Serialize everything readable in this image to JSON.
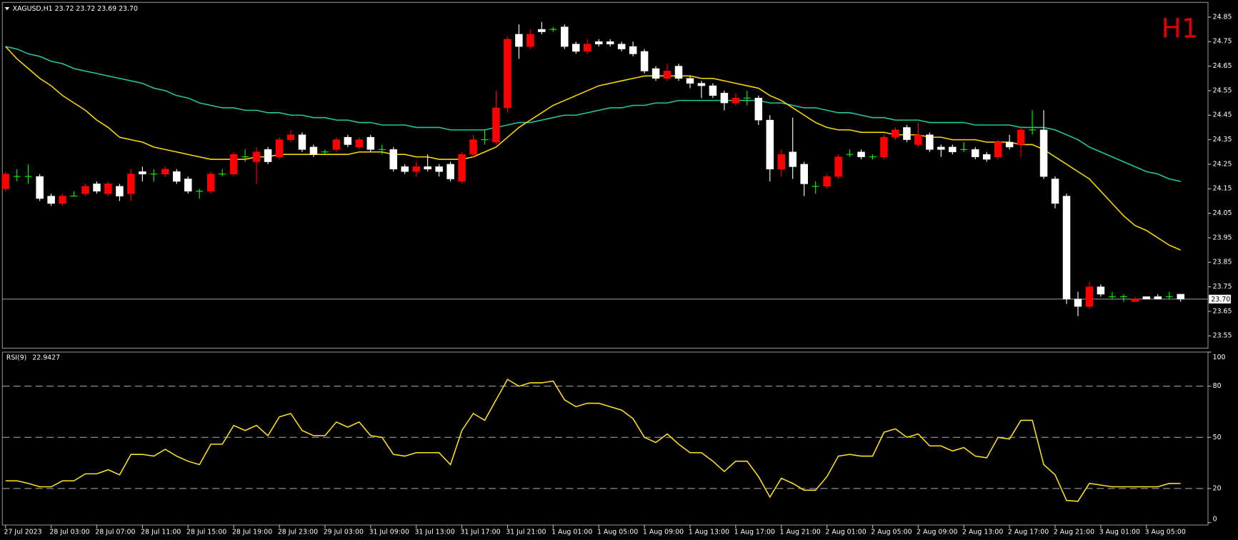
{
  "chart_data": [
    {
      "type": "candlestick",
      "title": "XAGUSD,H1  23.72 23.72 23.69 23.70",
      "timeframe": "H1",
      "categories": [
        "27 Jul 2023",
        null,
        null,
        null,
        "28 Jul 03:00",
        null,
        null,
        null,
        "28 Jul 07:00",
        null,
        null,
        null,
        "28 Jul 11:00",
        null,
        null,
        null,
        "28 Jul 15:00",
        null,
        null,
        null,
        "28 Jul 19:00",
        null,
        null,
        null,
        "28 Jul 23:00",
        null,
        null,
        null,
        "29 Jul 03:00",
        null,
        null,
        null,
        "31 Jul 09:00",
        null,
        null,
        null,
        "31 Jul 13:00",
        null,
        null,
        null,
        "31 Jul 17:00",
        null,
        null,
        null,
        "31 Jul 21:00",
        null,
        null,
        null,
        "1 Aug 01:00",
        null,
        null,
        null,
        "1 Aug 05:00",
        null,
        null,
        null,
        "1 Aug 09:00",
        null,
        null,
        null,
        "1 Aug 13:00",
        null,
        null,
        null,
        "1 Aug 17:00",
        null,
        null,
        null,
        "1 Aug 21:00",
        null,
        null,
        null,
        "2 Aug 01:00",
        null,
        null,
        null,
        "2 Aug 05:00",
        null,
        null,
        null,
        "2 Aug 09:00",
        null,
        null,
        null,
        "2 Aug 13:00",
        null,
        null,
        null,
        "2 Aug 17:00",
        null,
        null,
        null,
        "2 Aug 21:00",
        null,
        null,
        null,
        "3 Aug 01:00",
        null,
        null,
        null,
        "3 Aug 05:00",
        null,
        null,
        null
      ],
      "open": [
        24.15,
        24.2,
        24.2,
        24.2,
        24.12,
        24.09,
        24.12,
        24.13,
        24.17,
        24.13,
        24.16,
        24.13,
        24.22,
        24.21,
        24.21,
        24.22,
        24.19,
        24.14,
        24.14,
        24.21,
        24.21,
        24.28,
        24.26,
        24.31,
        24.28,
        24.35,
        24.37,
        24.32,
        24.3,
        24.31,
        24.36,
        24.32,
        24.36,
        24.31,
        24.31,
        24.24,
        24.22,
        24.24,
        24.24,
        24.25,
        24.18,
        24.29,
        24.35,
        24.34,
        24.48,
        24.78,
        24.73,
        24.8,
        24.8,
        24.81,
        24.74,
        24.71,
        24.75,
        24.75,
        24.74,
        24.73,
        24.71,
        24.64,
        24.6,
        24.65,
        24.6,
        24.58,
        24.57,
        24.54,
        24.5,
        24.52,
        24.52,
        24.43,
        24.23,
        24.3,
        24.25,
        24.16,
        24.16,
        24.2,
        24.29,
        24.3,
        24.28,
        24.28,
        24.36,
        24.4,
        24.33,
        24.37,
        24.32,
        24.32,
        24.31,
        24.31,
        24.29,
        24.28,
        24.34,
        24.33,
        24.39,
        24.39,
        24.19,
        24.12,
        23.7,
        23.67,
        23.75,
        23.71,
        23.71,
        23.69,
        23.71,
        23.71,
        23.71,
        23.72
      ],
      "high": [
        24.22,
        24.23,
        24.25,
        24.21,
        24.13,
        24.13,
        24.14,
        24.17,
        24.18,
        24.18,
        24.17,
        24.23,
        24.24,
        24.23,
        24.24,
        24.23,
        24.2,
        24.15,
        24.22,
        24.23,
        24.3,
        24.31,
        24.32,
        24.32,
        24.36,
        24.39,
        24.38,
        24.33,
        24.31,
        24.36,
        24.37,
        24.36,
        24.37,
        24.33,
        24.32,
        24.25,
        24.26,
        24.29,
        24.25,
        24.26,
        24.3,
        24.37,
        24.39,
        24.55,
        24.77,
        24.82,
        24.8,
        24.83,
        24.81,
        24.82,
        24.75,
        24.76,
        24.76,
        24.76,
        24.75,
        24.75,
        24.72,
        24.65,
        24.66,
        24.66,
        24.61,
        24.59,
        24.58,
        24.55,
        24.54,
        24.55,
        24.53,
        24.45,
        24.31,
        24.44,
        24.26,
        24.18,
        24.21,
        24.29,
        24.31,
        24.31,
        24.29,
        24.37,
        24.4,
        24.41,
        24.42,
        24.38,
        24.33,
        24.33,
        24.34,
        24.32,
        24.3,
        24.35,
        24.37,
        24.4,
        24.47,
        24.47,
        24.2,
        24.13,
        23.73,
        23.77,
        23.76,
        23.73,
        23.72,
        23.71,
        23.71,
        23.72,
        23.73,
        23.72
      ],
      "low": [
        24.14,
        24.18,
        24.17,
        24.1,
        24.08,
        24.08,
        24.12,
        24.12,
        24.13,
        24.12,
        24.1,
        24.1,
        24.18,
        24.18,
        24.2,
        24.17,
        24.13,
        24.11,
        24.13,
        24.2,
        24.2,
        24.26,
        24.17,
        24.25,
        24.27,
        24.34,
        24.3,
        24.28,
        24.29,
        24.3,
        24.32,
        24.31,
        24.3,
        24.29,
        24.22,
        24.21,
        24.2,
        24.22,
        24.2,
        24.18,
        24.17,
        24.28,
        24.33,
        24.33,
        24.46,
        24.68,
        24.72,
        24.78,
        24.79,
        24.72,
        24.7,
        24.7,
        24.73,
        24.73,
        24.71,
        24.69,
        24.62,
        24.59,
        24.59,
        24.59,
        24.56,
        24.52,
        24.52,
        24.47,
        24.49,
        24.49,
        24.41,
        24.18,
        24.2,
        24.19,
        24.12,
        24.13,
        24.15,
        24.19,
        24.28,
        24.27,
        24.27,
        24.27,
        24.35,
        24.34,
        24.32,
        24.3,
        24.28,
        24.29,
        24.3,
        24.27,
        24.26,
        24.27,
        24.31,
        24.28,
        24.37,
        24.19,
        24.07,
        23.68,
        23.63,
        23.66,
        23.71,
        23.7,
        23.69,
        23.69,
        23.7,
        23.7,
        23.7,
        23.69
      ],
      "close": [
        24.21,
        24.2,
        24.2,
        24.11,
        24.09,
        24.12,
        24.12,
        24.16,
        24.14,
        24.17,
        24.12,
        24.21,
        24.21,
        24.21,
        24.23,
        24.18,
        24.14,
        24.14,
        24.21,
        24.21,
        24.29,
        24.28,
        24.3,
        24.26,
        24.35,
        24.37,
        24.31,
        24.29,
        24.3,
        24.35,
        24.33,
        24.35,
        24.31,
        24.31,
        24.23,
        24.22,
        24.24,
        24.23,
        24.22,
        24.19,
        24.29,
        24.35,
        24.35,
        24.48,
        24.76,
        24.73,
        24.78,
        24.79,
        24.8,
        24.73,
        24.71,
        24.74,
        24.74,
        24.74,
        24.72,
        24.7,
        24.63,
        24.6,
        24.63,
        24.6,
        24.58,
        24.57,
        24.53,
        24.5,
        24.52,
        24.52,
        24.43,
        24.23,
        24.29,
        24.24,
        24.17,
        24.16,
        24.2,
        24.28,
        24.29,
        24.28,
        24.28,
        24.36,
        24.39,
        24.35,
        24.37,
        24.31,
        24.31,
        24.3,
        24.31,
        24.28,
        24.27,
        24.34,
        24.32,
        24.39,
        24.39,
        24.2,
        24.09,
        23.7,
        23.67,
        23.75,
        23.72,
        23.71,
        23.71,
        23.7,
        23.7,
        23.7,
        23.71,
        23.7
      ],
      "up_color": "#ff0000",
      "down_color": "#ffffff",
      "doji_color": "#00ff00",
      "series": [
        {
          "color": "#22c79e",
          "values": [
            24.73,
            24.72,
            24.7,
            24.69,
            24.67,
            24.66,
            24.64,
            24.63,
            24.62,
            24.61,
            24.6,
            24.59,
            24.58,
            24.56,
            24.55,
            24.53,
            24.52,
            24.5,
            24.49,
            24.48,
            24.48,
            24.47,
            24.47,
            24.46,
            24.46,
            24.45,
            24.45,
            24.44,
            24.44,
            24.43,
            24.43,
            24.42,
            24.42,
            24.41,
            24.41,
            24.41,
            24.4,
            24.4,
            24.4,
            24.39,
            24.39,
            24.39,
            24.39,
            24.4,
            24.41,
            24.42,
            24.42,
            24.43,
            24.44,
            24.45,
            24.45,
            24.46,
            24.47,
            24.48,
            24.48,
            24.49,
            24.49,
            24.5,
            24.5,
            24.51,
            24.51,
            24.51,
            24.51,
            24.51,
            24.51,
            24.51,
            24.51,
            24.5,
            24.5,
            24.49,
            24.48,
            24.48,
            24.47,
            24.46,
            24.46,
            24.45,
            24.44,
            24.44,
            24.43,
            24.43,
            24.43,
            24.42,
            24.42,
            24.42,
            24.42,
            24.41,
            24.41,
            24.41,
            24.41,
            24.4,
            24.4,
            24.4,
            24.39,
            24.37,
            24.35,
            24.32,
            24.3,
            24.28,
            24.26,
            24.24,
            24.22,
            24.21,
            24.19,
            24.18
          ]
        },
        {
          "color": "#ffd700",
          "values": [
            24.73,
            24.68,
            24.64,
            24.6,
            24.57,
            24.53,
            24.5,
            24.47,
            24.43,
            24.4,
            24.36,
            24.35,
            24.34,
            24.32,
            24.31,
            24.3,
            24.29,
            24.28,
            24.27,
            24.27,
            24.27,
            24.27,
            24.28,
            24.28,
            24.29,
            24.29,
            24.29,
            24.29,
            24.29,
            24.29,
            24.29,
            24.3,
            24.3,
            24.3,
            24.29,
            24.29,
            24.28,
            24.28,
            24.27,
            24.27,
            24.27,
            24.28,
            24.3,
            24.32,
            24.36,
            24.4,
            24.43,
            24.46,
            24.49,
            24.51,
            24.53,
            24.55,
            24.57,
            24.58,
            24.59,
            24.6,
            24.61,
            24.61,
            24.61,
            24.61,
            24.61,
            24.6,
            24.6,
            24.59,
            24.58,
            24.57,
            24.56,
            24.53,
            24.51,
            24.48,
            24.45,
            24.42,
            24.4,
            24.39,
            24.39,
            24.38,
            24.38,
            24.38,
            24.37,
            24.37,
            24.37,
            24.36,
            24.36,
            24.35,
            24.35,
            24.35,
            24.34,
            24.34,
            24.34,
            24.33,
            24.33,
            24.31,
            24.28,
            24.25,
            24.22,
            24.19,
            24.14,
            24.09,
            24.04,
            24.0,
            23.98,
            23.95,
            23.92,
            23.9
          ]
        }
      ],
      "last_price": {
        "value": 23.7,
        "label": "23.70"
      },
      "ylim": [
        23.5,
        24.91
      ],
      "yticks": [
        24.85,
        24.75,
        24.65,
        24.55,
        24.45,
        24.35,
        24.25,
        24.15,
        24.05,
        23.95,
        23.85,
        23.75,
        23.65,
        23.55
      ]
    },
    {
      "type": "line",
      "title": "RSI(9)",
      "current_value": 22.9427,
      "values": [
        24.5,
        24.5,
        23,
        21,
        21,
        24.5,
        24.5,
        28.6,
        28.6,
        31,
        28,
        40,
        40,
        39,
        43,
        39,
        36,
        34,
        46,
        46,
        57,
        54,
        57,
        51,
        62,
        64,
        54,
        51,
        51,
        59,
        56,
        59,
        51,
        50,
        40,
        39,
        41,
        41,
        41,
        34,
        54,
        64,
        60,
        72,
        84,
        80,
        82,
        82,
        83,
        72,
        68,
        70,
        70,
        68,
        66,
        61,
        50,
        47,
        52,
        46,
        41,
        41,
        36,
        30,
        36,
        36,
        27,
        15,
        26,
        23,
        19,
        19,
        27,
        39,
        40,
        39,
        39,
        53,
        55,
        50,
        52,
        45,
        45,
        42,
        44,
        39,
        38,
        50,
        49,
        60,
        60,
        34,
        28,
        13,
        12.5,
        23,
        22,
        21,
        21,
        21,
        21,
        21,
        23,
        22.9427
      ],
      "color": "#ffe21f",
      "ylim": [
        -1.4,
        100
      ],
      "yticks": [
        100,
        80,
        50,
        20,
        0
      ],
      "levels": [
        80,
        50,
        20
      ]
    }
  ]
}
